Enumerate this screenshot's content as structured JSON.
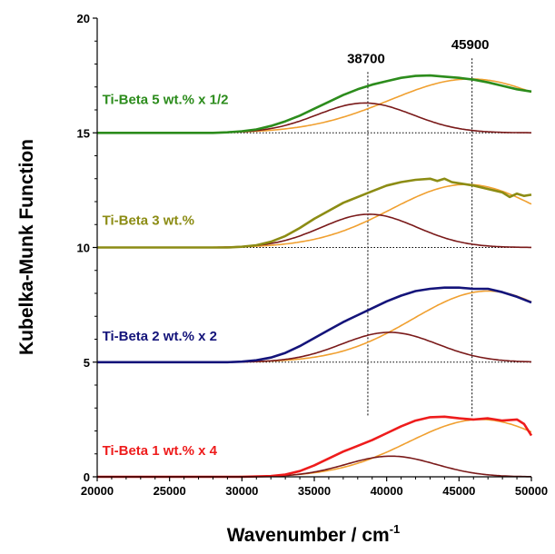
{
  "chart_data": {
    "type": "line",
    "xlabel": "Wavenumber / cm",
    "xlabel_sup": "-1",
    "ylabel": "Kubelka-Munk Function",
    "xlim": [
      20000,
      50000
    ],
    "ylim": [
      0,
      20
    ],
    "xticks": [
      "20000",
      "25000",
      "30000",
      "35000",
      "40000",
      "45000",
      "50000"
    ],
    "yticks": [
      "0",
      "5",
      "10",
      "15",
      "20"
    ],
    "xtick_values": [
      20000,
      25000,
      30000,
      35000,
      40000,
      45000,
      50000
    ],
    "ytick_values": [
      0,
      5,
      10,
      15,
      20
    ],
    "reference_lines": [
      {
        "label": "38700",
        "x": 38700
      },
      {
        "label": "45900",
        "x": 45900
      }
    ],
    "baselines": [
      0,
      5,
      10,
      15
    ],
    "colors": {
      "band_38700": "#7a1a1a",
      "band_45900": "#f0a030",
      "reference": "#000000"
    },
    "series": [
      {
        "name": "Ti-Beta 1 wt.%  x 4",
        "color": "#ee1c1c",
        "label_anchor": [
          20350,
          0.95
        ],
        "baseline": 0,
        "band_38700": {
          "peak": 0.9,
          "center": 40300,
          "width": 3100
        },
        "band_45900": {
          "peak": 2.5,
          "center": 46500,
          "width": 5000
        },
        "total": {
          "x": [
            20000,
            30000,
            32000,
            33000,
            34000,
            35000,
            36000,
            37000,
            38000,
            39000,
            40000,
            41000,
            42000,
            43000,
            44000,
            45000,
            46000,
            47000,
            48000,
            49000,
            49500,
            50000
          ],
          "y": [
            0,
            0,
            0.03,
            0.1,
            0.25,
            0.5,
            0.8,
            1.1,
            1.35,
            1.6,
            1.9,
            2.2,
            2.45,
            2.6,
            2.62,
            2.55,
            2.5,
            2.55,
            2.45,
            2.5,
            2.3,
            1.8
          ]
        }
      },
      {
        "name": "Ti-Beta 2 wt.% x 2",
        "color": "#14147a",
        "label_anchor": [
          20350,
          5.95
        ],
        "baseline": 5,
        "band_38700": {
          "peak": 1.3,
          "center": 40200,
          "width": 3300
        },
        "band_45900": {
          "peak": 3.1,
          "center": 47000,
          "width": 5200
        },
        "total": {
          "x": [
            20000,
            29000,
            30000,
            31000,
            32000,
            33000,
            34000,
            35000,
            36000,
            37000,
            38000,
            39000,
            40000,
            41000,
            42000,
            43000,
            44000,
            45000,
            46000,
            47000,
            48000,
            49000,
            50000
          ],
          "y": [
            5,
            5,
            5.02,
            5.08,
            5.2,
            5.4,
            5.7,
            6.05,
            6.4,
            6.75,
            7.05,
            7.35,
            7.65,
            7.9,
            8.1,
            8.2,
            8.25,
            8.25,
            8.2,
            8.2,
            8.05,
            7.85,
            7.6
          ]
        }
      },
      {
        "name": "Ti-Beta 3 wt.%",
        "color": "#8c8c14",
        "label_anchor": [
          20350,
          11.0
        ],
        "baseline": 10,
        "band_38700": {
          "peak": 1.45,
          "center": 38800,
          "width": 3300
        },
        "band_45900": {
          "peak": 2.75,
          "center": 45500,
          "width": 5200
        },
        "total": {
          "x": [
            20000,
            29000,
            30000,
            31000,
            32000,
            33000,
            34000,
            35000,
            36000,
            37000,
            38000,
            39000,
            40000,
            41000,
            42000,
            43000,
            43500,
            44000,
            44500,
            45000,
            46000,
            47000,
            48000,
            48500,
            49000,
            49500,
            50000
          ],
          "y": [
            10,
            10,
            10.03,
            10.1,
            10.25,
            10.5,
            10.85,
            11.25,
            11.6,
            11.95,
            12.2,
            12.45,
            12.7,
            12.85,
            12.95,
            13.0,
            12.9,
            13.0,
            12.85,
            12.8,
            12.7,
            12.55,
            12.4,
            12.2,
            12.35,
            12.25,
            12.3
          ]
        }
      },
      {
        "name": "Ti-Beta 5 wt.% x 1/2",
        "color": "#2c8c1c",
        "label_anchor": [
          20350,
          16.25
        ],
        "baseline": 15,
        "band_38700": {
          "peak": 1.3,
          "center": 38500,
          "width": 3300
        },
        "band_45900": {
          "peak": 2.35,
          "center": 45800,
          "width": 5600
        },
        "total": {
          "x": [
            20000,
            28000,
            29000,
            30000,
            31000,
            32000,
            33000,
            34000,
            35000,
            36000,
            37000,
            38000,
            39000,
            40000,
            41000,
            42000,
            43000,
            44000,
            45000,
            46000,
            47000,
            48000,
            49000,
            50000
          ],
          "y": [
            15,
            15,
            15.02,
            15.07,
            15.15,
            15.3,
            15.5,
            15.75,
            16.05,
            16.35,
            16.65,
            16.9,
            17.1,
            17.25,
            17.4,
            17.48,
            17.5,
            17.45,
            17.4,
            17.32,
            17.2,
            17.05,
            16.9,
            16.8
          ]
        }
      }
    ]
  }
}
